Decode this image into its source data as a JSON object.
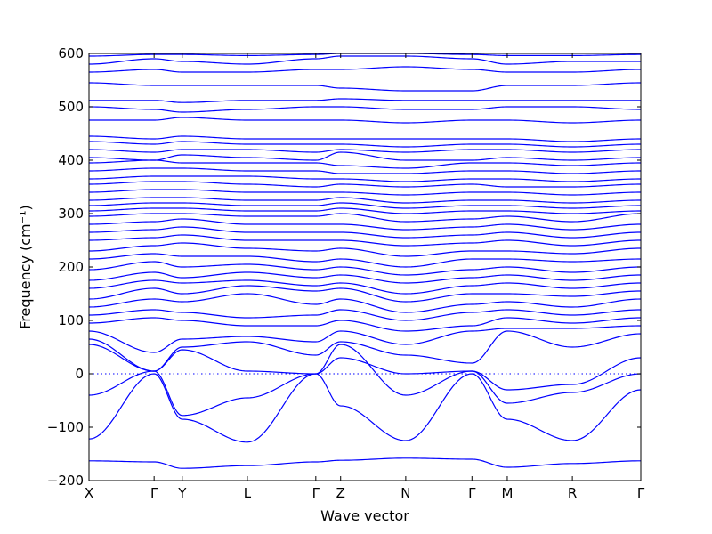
{
  "chart_data": {
    "type": "line",
    "title": "",
    "xlabel": "Wave vector",
    "ylabel": "Frequency (cm⁻¹)",
    "ylim": [
      -200,
      600
    ],
    "yticks": [
      -200,
      -100,
      0,
      100,
      200,
      300,
      400,
      500,
      600
    ],
    "ytick_labels": [
      "−200",
      "−100",
      "0",
      "100",
      "200",
      "300",
      "400",
      "500",
      "600"
    ],
    "high_symmetry_points": [
      {
        "label": "X",
        "x": 0.0
      },
      {
        "label": "Γ",
        "x": 0.118
      },
      {
        "label": "Y",
        "x": 0.169
      },
      {
        "label": "L",
        "x": 0.287
      },
      {
        "label": "Γ",
        "x": 0.411
      },
      {
        "label": "Z",
        "x": 0.456
      },
      {
        "label": "N",
        "x": 0.574
      },
      {
        "label": "Γ",
        "x": 0.694
      },
      {
        "label": "M",
        "x": 0.758
      },
      {
        "label": "R",
        "x": 0.876
      },
      {
        "label": "Γ",
        "x": 1.0
      }
    ],
    "zero_line": {
      "y": 0,
      "style": "dotted"
    },
    "grid": false,
    "legend": "none",
    "series_color": "#0000ff",
    "series": [
      {
        "values": [
          -163,
          -165,
          -177,
          -172,
          -165,
          -162,
          -158,
          -160,
          -175,
          -168,
          -163
        ]
      },
      {
        "values": [
          -122,
          0,
          -85,
          -128,
          0,
          -60,
          -125,
          0,
          -85,
          -125,
          -30
        ]
      },
      {
        "values": [
          -40,
          5,
          -78,
          -45,
          0,
          30,
          0,
          5,
          -55,
          -35,
          0
        ]
      },
      {
        "values": [
          55,
          5,
          45,
          5,
          0,
          55,
          -40,
          5,
          -30,
          -20,
          30
        ]
      },
      {
        "values": [
          65,
          5,
          50,
          60,
          35,
          60,
          35,
          20,
          80,
          50,
          75
        ]
      },
      {
        "values": [
          80,
          40,
          65,
          70,
          60,
          80,
          55,
          80,
          85,
          85,
          90
        ]
      },
      {
        "values": [
          95,
          105,
          100,
          90,
          90,
          100,
          80,
          90,
          105,
          95,
          105
        ]
      },
      {
        "values": [
          110,
          120,
          115,
          105,
          110,
          120,
          100,
          115,
          120,
          110,
          120
        ]
      },
      {
        "values": [
          125,
          140,
          135,
          150,
          130,
          140,
          115,
          130,
          135,
          125,
          140
        ]
      },
      {
        "values": [
          140,
          160,
          150,
          165,
          155,
          160,
          135,
          150,
          150,
          145,
          155
        ]
      },
      {
        "values": [
          160,
          175,
          170,
          175,
          165,
          170,
          150,
          165,
          170,
          160,
          170
        ]
      },
      {
        "values": [
          175,
          190,
          180,
          190,
          180,
          185,
          170,
          180,
          185,
          175,
          185
        ]
      },
      {
        "values": [
          195,
          210,
          200,
          205,
          195,
          200,
          185,
          195,
          200,
          190,
          200
        ]
      },
      {
        "values": [
          215,
          225,
          220,
          220,
          210,
          215,
          200,
          215,
          215,
          210,
          215
        ]
      },
      {
        "values": [
          230,
          240,
          245,
          235,
          230,
          235,
          220,
          230,
          230,
          225,
          235
        ]
      },
      {
        "values": [
          250,
          255,
          260,
          250,
          250,
          250,
          240,
          245,
          250,
          240,
          250
        ]
      },
      {
        "values": [
          265,
          270,
          275,
          265,
          265,
          265,
          255,
          260,
          265,
          255,
          265
        ]
      },
      {
        "values": [
          280,
          285,
          290,
          280,
          280,
          280,
          270,
          275,
          280,
          270,
          280
        ]
      },
      {
        "values": [
          295,
          300,
          300,
          295,
          295,
          300,
          285,
          290,
          295,
          285,
          300
        ]
      },
      {
        "values": [
          305,
          310,
          310,
          305,
          305,
          310,
          300,
          305,
          305,
          300,
          305
        ]
      },
      {
        "values": [
          315,
          320,
          320,
          315,
          315,
          320,
          310,
          315,
          315,
          310,
          315
        ]
      },
      {
        "values": [
          325,
          330,
          330,
          325,
          325,
          330,
          320,
          325,
          325,
          320,
          325
        ]
      },
      {
        "values": [
          340,
          345,
          345,
          340,
          340,
          340,
          335,
          340,
          340,
          335,
          340
        ]
      },
      {
        "values": [
          355,
          360,
          360,
          355,
          350,
          355,
          350,
          355,
          350,
          350,
          355
        ]
      },
      {
        "values": [
          365,
          370,
          370,
          370,
          365,
          365,
          360,
          365,
          365,
          360,
          365
        ]
      },
      {
        "values": [
          380,
          385,
          385,
          380,
          380,
          375,
          375,
          380,
          380,
          375,
          380
        ]
      },
      {
        "values": [
          395,
          400,
          395,
          395,
          395,
          390,
          385,
          395,
          395,
          390,
          395
        ]
      },
      {
        "values": [
          405,
          400,
          410,
          405,
          400,
          415,
          400,
          400,
          405,
          400,
          405
        ]
      },
      {
        "values": [
          420,
          415,
          420,
          420,
          415,
          420,
          415,
          420,
          420,
          415,
          420
        ]
      },
      {
        "values": [
          435,
          430,
          435,
          430,
          430,
          430,
          425,
          430,
          430,
          425,
          430
        ]
      },
      {
        "values": [
          445,
          440,
          445,
          440,
          440,
          440,
          440,
          440,
          440,
          435,
          440
        ]
      },
      {
        "values": [
          475,
          475,
          480,
          475,
          475,
          475,
          470,
          475,
          475,
          470,
          475
        ]
      },
      {
        "values": [
          500,
          495,
          490,
          495,
          500,
          500,
          495,
          495,
          500,
          500,
          495
        ]
      },
      {
        "values": [
          512,
          512,
          508,
          512,
          512,
          515,
          512,
          512,
          512,
          512,
          512
        ]
      },
      {
        "values": [
          545,
          540,
          540,
          540,
          540,
          535,
          530,
          530,
          540,
          540,
          545
        ]
      },
      {
        "values": [
          565,
          570,
          565,
          565,
          570,
          570,
          575,
          570,
          565,
          565,
          570
        ]
      },
      {
        "values": [
          580,
          590,
          585,
          580,
          590,
          595,
          595,
          590,
          580,
          585,
          585
        ]
      },
      {
        "values": [
          595,
          598,
          598,
          596,
          598,
          600,
          600,
          598,
          596,
          596,
          598
        ]
      }
    ]
  }
}
